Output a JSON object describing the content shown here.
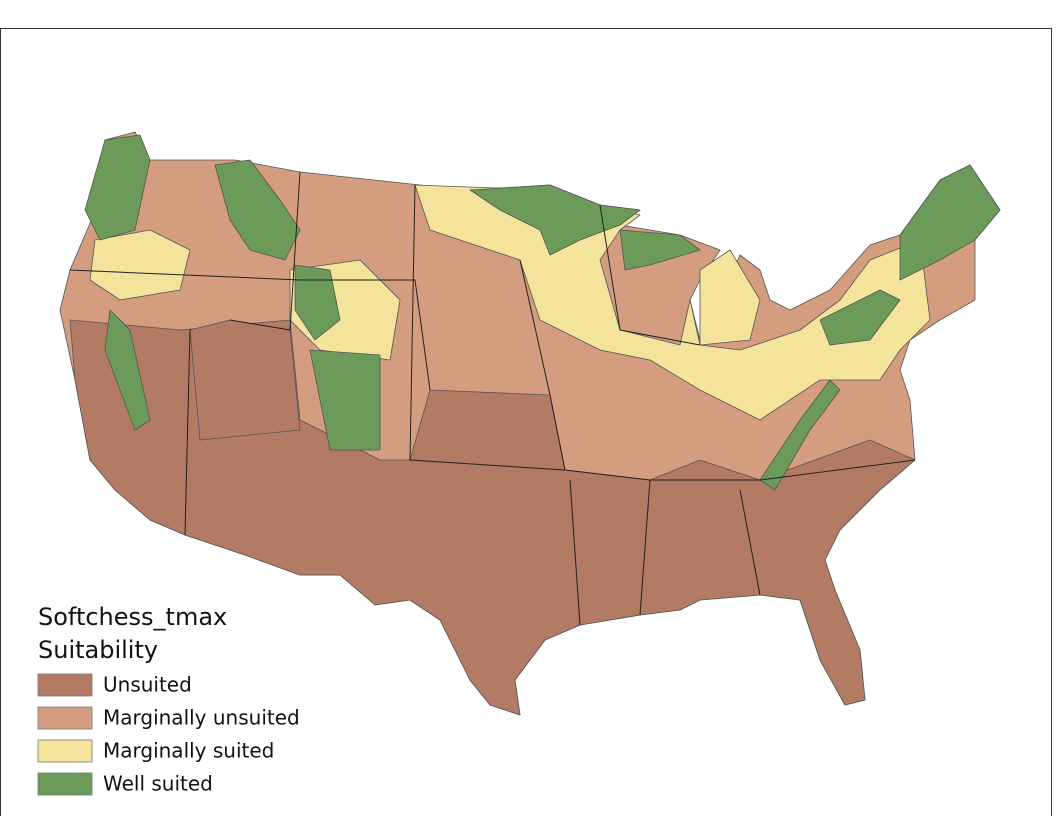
{
  "legend": {
    "title": [
      "Softchess_tmax",
      "Suitability"
    ],
    "items": [
      {
        "label": "Unsuited",
        "color": "#b37b63"
      },
      {
        "label": "Marginally unsuited",
        "color": "#d49d80"
      },
      {
        "label": "Marginally suited",
        "color": "#f3e39b"
      },
      {
        "label": "Well suited",
        "color": "#6b9a59"
      }
    ]
  }
}
